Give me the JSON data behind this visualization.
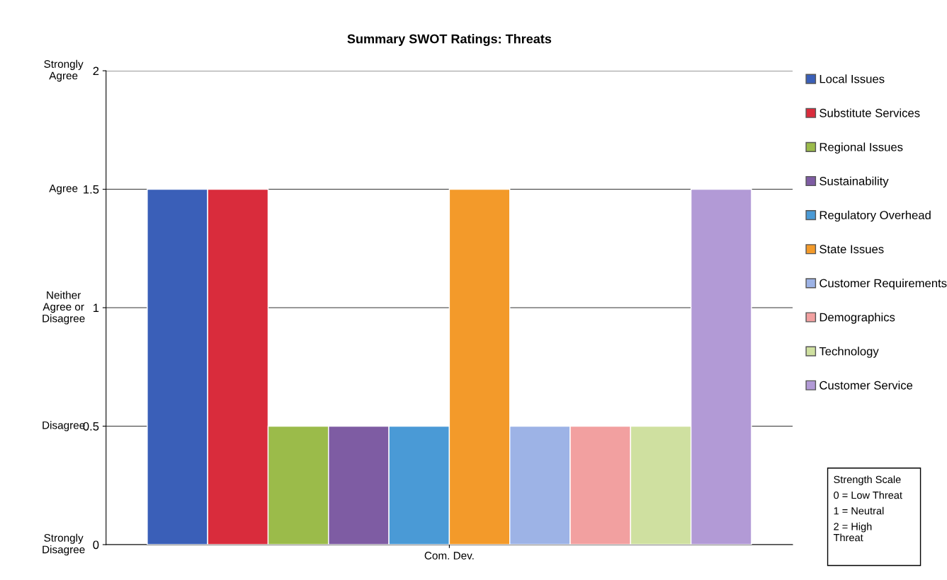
{
  "chart_data": {
    "type": "bar",
    "title": "Summary SWOT Ratings: Threats",
    "categories": [
      "Com. Dev."
    ],
    "series": [
      {
        "name": "Local Issues",
        "color": "#3a5fb8",
        "values": [
          1.5
        ]
      },
      {
        "name": "Substitute Services",
        "color": "#d92c3c",
        "values": [
          1.5
        ]
      },
      {
        "name": "Regional Issues",
        "color": "#9bbb4a",
        "values": [
          0.5
        ]
      },
      {
        "name": "Sustainability",
        "color": "#7e5ca3",
        "values": [
          0.5
        ]
      },
      {
        "name": "Regulatory Overhead",
        "color": "#4a9ad6",
        "values": [
          0.5
        ]
      },
      {
        "name": "State Issues",
        "color": "#f39a2a",
        "values": [
          1.5
        ]
      },
      {
        "name": "Customer Requirements",
        "color": "#9db3e6",
        "values": [
          0.5
        ]
      },
      {
        "name": "Demographics",
        "color": "#f2a0a0",
        "values": [
          0.5
        ]
      },
      {
        "name": "Technology",
        "color": "#cfe0a0",
        "values": [
          0.5
        ]
      },
      {
        "name": "Customer Service",
        "color": "#b29ad6",
        "values": [
          1.5
        ]
      }
    ],
    "ylim": [
      0,
      2
    ],
    "yticks": [
      0,
      0.5,
      1,
      1.5,
      2
    ],
    "grid": "y",
    "legend": "right",
    "annotations": [
      "Strongly\nAgree",
      "Agree",
      "Neither\nAgree or\nDisagree",
      "Disagree",
      "Strongly\nDisagree",
      "Strength Scale",
      "0 = Low Threat",
      "1 = Neutral",
      "2 = High\nThreat"
    ]
  }
}
